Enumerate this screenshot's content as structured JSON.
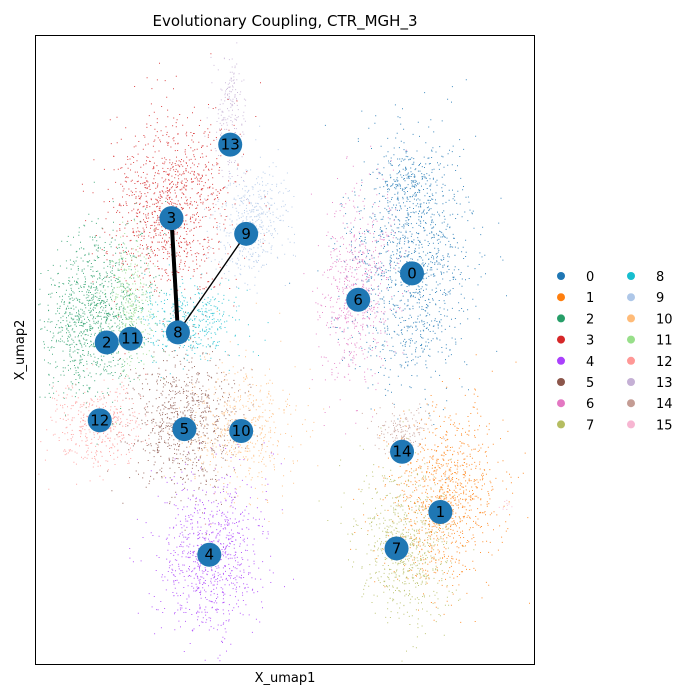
{
  "chart_data": {
    "type": "scatter",
    "title": "Evolutionary Coupling, CTR_MGH_3",
    "xlabel": "X_umap1",
    "ylabel": "X_umap2",
    "grid": false,
    "legend_placement": "right",
    "xlim": [
      0,
      100
    ],
    "ylim": [
      0,
      100
    ],
    "clusters": [
      {
        "name": "0",
        "color": "#1f77b4",
        "centroid": [
          75.5,
          62.2
        ]
      },
      {
        "name": "1",
        "color": "#ff7f0e",
        "centroid": [
          81.2,
          24.2
        ]
      },
      {
        "name": "2",
        "color": "#279e68",
        "centroid": [
          14.2,
          51.2
        ]
      },
      {
        "name": "3",
        "color": "#d62728",
        "centroid": [
          27.2,
          71.0
        ]
      },
      {
        "name": "4",
        "color": "#aa40fc",
        "centroid": [
          34.8,
          17.4
        ]
      },
      {
        "name": "5",
        "color": "#8c564b",
        "centroid": [
          29.8,
          37.4
        ]
      },
      {
        "name": "6",
        "color": "#e377c2",
        "centroid": [
          64.7,
          58.0
        ]
      },
      {
        "name": "7",
        "color": "#b5bd61",
        "centroid": [
          72.4,
          18.4
        ]
      },
      {
        "name": "8",
        "color": "#17becf",
        "centroid": [
          28.5,
          52.8
        ]
      },
      {
        "name": "9",
        "color": "#aec7e8",
        "centroid": [
          42.2,
          68.5
        ]
      },
      {
        "name": "10",
        "color": "#ffbb78",
        "centroid": [
          41.2,
          37.1
        ]
      },
      {
        "name": "11",
        "color": "#98df8a",
        "centroid": [
          19.0,
          51.8
        ]
      },
      {
        "name": "12",
        "color": "#ff9896",
        "centroid": [
          12.8,
          38.8
        ]
      },
      {
        "name": "13",
        "color": "#c5b0d5",
        "centroid": [
          39.0,
          82.7
        ]
      },
      {
        "name": "14",
        "color": "#c49c94",
        "centroid": [
          73.5,
          33.8
        ]
      },
      {
        "name": "15",
        "color": "#f7b6d2",
        "centroid": null
      }
    ],
    "edges": [
      {
        "from": "3",
        "to": "8",
        "weight": 1.0
      },
      {
        "from": "9",
        "to": "8",
        "weight": 0.25
      }
    ],
    "node_color": "#1f77b4"
  }
}
